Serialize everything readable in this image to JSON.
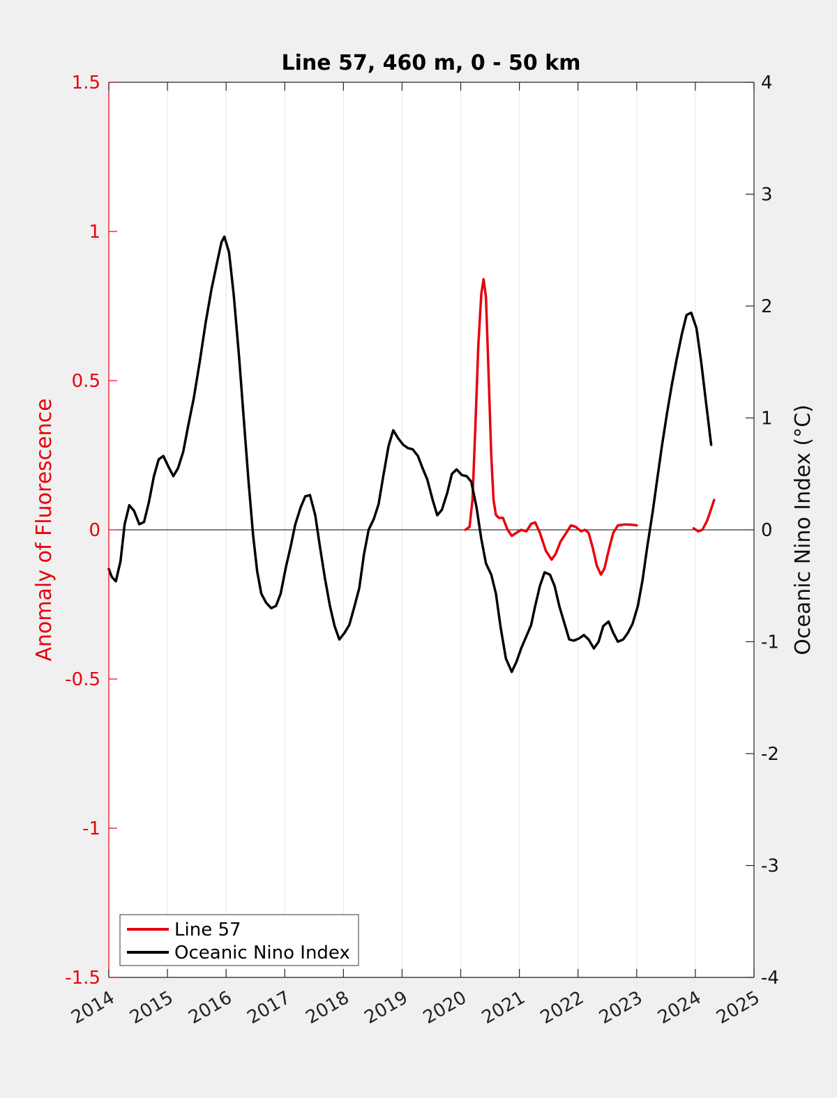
{
  "chart_data": {
    "type": "line",
    "title": "Line 57, 460 m, 0 - 50 km",
    "ylabel_left": "Anomaly of Fluorescence",
    "ylabel_right": "Oceanic Nino Index (°C)",
    "xlabel": "",
    "xlim": [
      2014,
      2025
    ],
    "ylim_left": [
      -1.5,
      1.5
    ],
    "ylim_right": [
      -4,
      4
    ],
    "x_ticks": [
      "2014",
      "2015",
      "2016",
      "2017",
      "2018",
      "2019",
      "2020",
      "2021",
      "2022",
      "2023",
      "2024",
      "2025"
    ],
    "y_ticks_left": [
      "1.5",
      "1",
      "0.5",
      "0",
      "-0.5",
      "-1",
      "-1.5"
    ],
    "y_ticks_right": [
      "4",
      "3",
      "2",
      "1",
      "0",
      "-1",
      "-2",
      "-3",
      "-4"
    ],
    "grid": "vertical lines at x ticks",
    "legend_position": "bottom-left",
    "series": [
      {
        "name": "Line 57",
        "axis": "left",
        "color": "#e8000b",
        "segments": [
          [
            [
              2020.08,
              0.0
            ],
            [
              2020.15,
              0.01
            ],
            [
              2020.2,
              0.1
            ],
            [
              2020.25,
              0.35
            ],
            [
              2020.3,
              0.62
            ],
            [
              2020.35,
              0.79
            ],
            [
              2020.39,
              0.84
            ],
            [
              2020.43,
              0.78
            ],
            [
              2020.47,
              0.55
            ],
            [
              2020.52,
              0.25
            ],
            [
              2020.56,
              0.1
            ],
            [
              2020.6,
              0.05
            ],
            [
              2020.65,
              0.04
            ],
            [
              2020.72,
              0.04
            ],
            [
              2020.8,
              0.0
            ],
            [
              2020.87,
              -0.02
            ],
            [
              2020.95,
              -0.01
            ],
            [
              2021.03,
              0.0
            ],
            [
              2021.12,
              -0.005
            ],
            [
              2021.2,
              0.02
            ],
            [
              2021.27,
              0.025
            ],
            [
              2021.35,
              -0.01
            ],
            [
              2021.45,
              -0.07
            ],
            [
              2021.55,
              -0.1
            ],
            [
              2021.62,
              -0.08
            ],
            [
              2021.7,
              -0.04
            ],
            [
              2021.8,
              -0.01
            ],
            [
              2021.88,
              0.015
            ],
            [
              2021.96,
              0.01
            ],
            [
              2022.05,
              -0.005
            ],
            [
              2022.12,
              0.0
            ],
            [
              2022.18,
              -0.01
            ],
            [
              2022.25,
              -0.06
            ],
            [
              2022.32,
              -0.12
            ],
            [
              2022.39,
              -0.15
            ],
            [
              2022.45,
              -0.13
            ],
            [
              2022.52,
              -0.07
            ],
            [
              2022.6,
              -0.01
            ],
            [
              2022.68,
              0.015
            ],
            [
              2022.8,
              0.018
            ],
            [
              2022.92,
              0.017
            ],
            [
              2023.0,
              0.015
            ]
          ],
          [
            [
              2023.97,
              0.005
            ],
            [
              2024.05,
              -0.005
            ],
            [
              2024.12,
              0.0
            ],
            [
              2024.2,
              0.03
            ],
            [
              2024.27,
              0.07
            ],
            [
              2024.32,
              0.1
            ]
          ]
        ]
      },
      {
        "name": "Oceanic Nino Index",
        "axis": "right",
        "color": "#000000",
        "segments": [
          [
            [
              2014.0,
              -0.35
            ],
            [
              2014.05,
              -0.42
            ],
            [
              2014.12,
              -0.46
            ],
            [
              2014.2,
              -0.28
            ],
            [
              2014.27,
              0.05
            ],
            [
              2014.35,
              0.22
            ],
            [
              2014.43,
              0.17
            ],
            [
              2014.52,
              0.05
            ],
            [
              2014.6,
              0.07
            ],
            [
              2014.68,
              0.24
            ],
            [
              2014.77,
              0.48
            ],
            [
              2014.85,
              0.63
            ],
            [
              2014.93,
              0.66
            ],
            [
              2015.02,
              0.56
            ],
            [
              2015.1,
              0.48
            ],
            [
              2015.18,
              0.55
            ],
            [
              2015.27,
              0.7
            ],
            [
              2015.35,
              0.92
            ],
            [
              2015.45,
              1.18
            ],
            [
              2015.55,
              1.5
            ],
            [
              2015.65,
              1.85
            ],
            [
              2015.75,
              2.15
            ],
            [
              2015.85,
              2.4
            ],
            [
              2015.92,
              2.57
            ],
            [
              2015.97,
              2.62
            ],
            [
              2016.05,
              2.48
            ],
            [
              2016.13,
              2.1
            ],
            [
              2016.22,
              1.55
            ],
            [
              2016.3,
              1.0
            ],
            [
              2016.38,
              0.45
            ],
            [
              2016.46,
              -0.05
            ],
            [
              2016.53,
              -0.37
            ],
            [
              2016.6,
              -0.57
            ],
            [
              2016.68,
              -0.65
            ],
            [
              2016.77,
              -0.7
            ],
            [
              2016.85,
              -0.68
            ],
            [
              2016.93,
              -0.57
            ],
            [
              2017.02,
              -0.33
            ],
            [
              2017.1,
              -0.15
            ],
            [
              2017.18,
              0.05
            ],
            [
              2017.27,
              0.2
            ],
            [
              2017.35,
              0.3
            ],
            [
              2017.43,
              0.31
            ],
            [
              2017.52,
              0.13
            ],
            [
              2017.6,
              -0.15
            ],
            [
              2017.68,
              -0.42
            ],
            [
              2017.77,
              -0.68
            ],
            [
              2017.85,
              -0.86
            ],
            [
              2017.93,
              -0.98
            ],
            [
              2018.02,
              -0.92
            ],
            [
              2018.1,
              -0.85
            ],
            [
              2018.18,
              -0.7
            ],
            [
              2018.27,
              -0.52
            ],
            [
              2018.35,
              -0.22
            ],
            [
              2018.43,
              0.0
            ],
            [
              2018.52,
              0.1
            ],
            [
              2018.6,
              0.23
            ],
            [
              2018.68,
              0.48
            ],
            [
              2018.77,
              0.75
            ],
            [
              2018.85,
              0.89
            ],
            [
              2018.93,
              0.82
            ],
            [
              2019.02,
              0.76
            ],
            [
              2019.1,
              0.73
            ],
            [
              2019.18,
              0.72
            ],
            [
              2019.27,
              0.66
            ],
            [
              2019.35,
              0.55
            ],
            [
              2019.43,
              0.45
            ],
            [
              2019.52,
              0.27
            ],
            [
              2019.6,
              0.13
            ],
            [
              2019.68,
              0.18
            ],
            [
              2019.77,
              0.33
            ],
            [
              2019.85,
              0.5
            ],
            [
              2019.93,
              0.54
            ],
            [
              2020.02,
              0.49
            ],
            [
              2020.1,
              0.48
            ],
            [
              2020.18,
              0.43
            ],
            [
              2020.27,
              0.2
            ],
            [
              2020.35,
              -0.08
            ],
            [
              2020.43,
              -0.3
            ],
            [
              2020.52,
              -0.4
            ],
            [
              2020.6,
              -0.57
            ],
            [
              2020.68,
              -0.87
            ],
            [
              2020.77,
              -1.15
            ],
            [
              2020.87,
              -1.27
            ],
            [
              2020.95,
              -1.18
            ],
            [
              2021.03,
              -1.06
            ],
            [
              2021.12,
              -0.95
            ],
            [
              2021.2,
              -0.85
            ],
            [
              2021.27,
              -0.68
            ],
            [
              2021.35,
              -0.5
            ],
            [
              2021.43,
              -0.38
            ],
            [
              2021.52,
              -0.4
            ],
            [
              2021.6,
              -0.5
            ],
            [
              2021.68,
              -0.68
            ],
            [
              2021.77,
              -0.84
            ],
            [
              2021.85,
              -0.98
            ],
            [
              2021.93,
              -0.99
            ],
            [
              2022.02,
              -0.97
            ],
            [
              2022.1,
              -0.94
            ],
            [
              2022.18,
              -0.98
            ],
            [
              2022.27,
              -1.06
            ],
            [
              2022.35,
              -1.0
            ],
            [
              2022.43,
              -0.86
            ],
            [
              2022.52,
              -0.82
            ],
            [
              2022.6,
              -0.92
            ],
            [
              2022.68,
              -1.0
            ],
            [
              2022.77,
              -0.98
            ],
            [
              2022.85,
              -0.92
            ],
            [
              2022.93,
              -0.84
            ],
            [
              2023.02,
              -0.68
            ],
            [
              2023.1,
              -0.45
            ],
            [
              2023.18,
              -0.15
            ],
            [
              2023.27,
              0.15
            ],
            [
              2023.35,
              0.45
            ],
            [
              2023.43,
              0.75
            ],
            [
              2023.52,
              1.05
            ],
            [
              2023.6,
              1.3
            ],
            [
              2023.68,
              1.52
            ],
            [
              2023.77,
              1.75
            ],
            [
              2023.85,
              1.92
            ],
            [
              2023.93,
              1.94
            ],
            [
              2024.02,
              1.8
            ],
            [
              2024.1,
              1.5
            ],
            [
              2024.18,
              1.15
            ],
            [
              2024.27,
              0.76
            ]
          ]
        ]
      }
    ]
  }
}
